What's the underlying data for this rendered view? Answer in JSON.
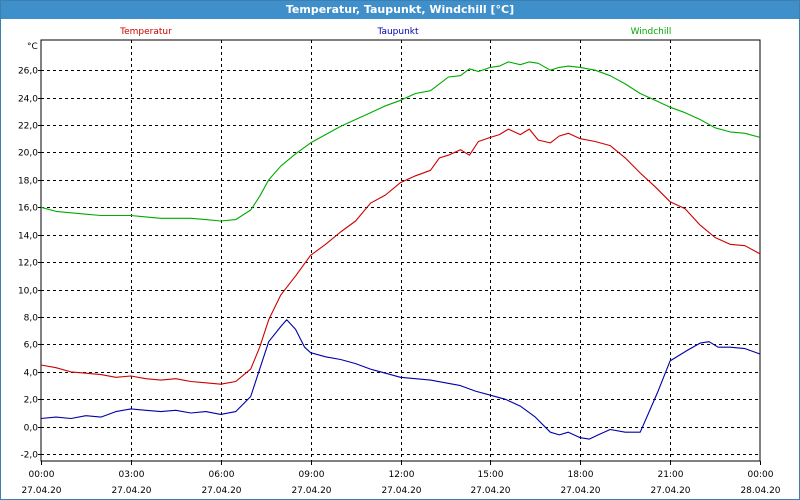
{
  "window": {
    "title": "Temperatur, Taupunkt, Windchill [°C]"
  },
  "chart_data": {
    "type": "line",
    "ylabel": "°C",
    "ylim": [
      -2.5,
      28.2
    ],
    "yticks": [
      -2,
      0,
      2,
      4,
      6,
      8,
      10,
      12,
      14,
      16,
      18,
      20,
      22,
      24,
      26
    ],
    "ytick_labels": [
      "-2,0",
      "0,0",
      "2,0",
      "4,0",
      "6,0",
      "8,0",
      "10,0",
      "12,0",
      "14,0",
      "16,0",
      "18,0",
      "20,0",
      "22,0",
      "24,0",
      "26,0"
    ],
    "xlim": [
      0,
      24
    ],
    "xticks": [
      0,
      3,
      6,
      9,
      12,
      15,
      18,
      21,
      24
    ],
    "xtick_labels": [
      [
        "00:00",
        "27.04.20"
      ],
      [
        "03:00",
        "27.04.20"
      ],
      [
        "06:00",
        "27.04.20"
      ],
      [
        "09:00",
        "27.04.20"
      ],
      [
        "12:00",
        "27.04.20"
      ],
      [
        "15:00",
        "27.04.20"
      ],
      [
        "18:00",
        "27.04.20"
      ],
      [
        "21:00",
        "27.04.20"
      ],
      [
        "00:00",
        "28.04.20"
      ]
    ],
    "grid": true,
    "legend_position": "top",
    "series": [
      {
        "name": "Temperatur",
        "color": "#cc0000",
        "points": [
          [
            0,
            4.5
          ],
          [
            0.5,
            4.3
          ],
          [
            1,
            4.0
          ],
          [
            1.5,
            3.9
          ],
          [
            2,
            3.8
          ],
          [
            2.5,
            3.6
          ],
          [
            3,
            3.7
          ],
          [
            3.5,
            3.5
          ],
          [
            4,
            3.4
          ],
          [
            4.5,
            3.5
          ],
          [
            5,
            3.3
          ],
          [
            5.5,
            3.2
          ],
          [
            6,
            3.1
          ],
          [
            6.5,
            3.3
          ],
          [
            7,
            4.2
          ],
          [
            7.3,
            5.8
          ],
          [
            7.6,
            7.8
          ],
          [
            8,
            9.6
          ],
          [
            8.5,
            11.0
          ],
          [
            9,
            12.5
          ],
          [
            9.5,
            13.3
          ],
          [
            10,
            14.2
          ],
          [
            10.5,
            15.0
          ],
          [
            11,
            16.3
          ],
          [
            11.5,
            16.9
          ],
          [
            12,
            17.8
          ],
          [
            12.5,
            18.3
          ],
          [
            13,
            18.7
          ],
          [
            13.3,
            19.6
          ],
          [
            13.6,
            19.8
          ],
          [
            14,
            20.2
          ],
          [
            14.3,
            19.8
          ],
          [
            14.6,
            20.8
          ],
          [
            15,
            21.1
          ],
          [
            15.3,
            21.3
          ],
          [
            15.6,
            21.7
          ],
          [
            16,
            21.3
          ],
          [
            16.3,
            21.7
          ],
          [
            16.6,
            20.9
          ],
          [
            17,
            20.7
          ],
          [
            17.3,
            21.2
          ],
          [
            17.6,
            21.4
          ],
          [
            18,
            21.0
          ],
          [
            18.5,
            20.8
          ],
          [
            19,
            20.5
          ],
          [
            19.5,
            19.6
          ],
          [
            20,
            18.5
          ],
          [
            20.5,
            17.5
          ],
          [
            21,
            16.4
          ],
          [
            21.5,
            15.9
          ],
          [
            22,
            14.7
          ],
          [
            22.5,
            13.8
          ],
          [
            23,
            13.3
          ],
          [
            23.5,
            13.2
          ],
          [
            24,
            12.6
          ]
        ]
      },
      {
        "name": "Taupunkt",
        "color": "#0000aa",
        "points": [
          [
            0,
            0.6
          ],
          [
            0.5,
            0.7
          ],
          [
            1,
            0.6
          ],
          [
            1.5,
            0.8
          ],
          [
            2,
            0.7
          ],
          [
            2.5,
            1.1
          ],
          [
            3,
            1.3
          ],
          [
            3.5,
            1.2
          ],
          [
            4,
            1.1
          ],
          [
            4.5,
            1.2
          ],
          [
            5,
            1.0
          ],
          [
            5.5,
            1.1
          ],
          [
            6,
            0.9
          ],
          [
            6.5,
            1.1
          ],
          [
            7,
            2.2
          ],
          [
            7.3,
            4.2
          ],
          [
            7.6,
            6.2
          ],
          [
            8,
            7.3
          ],
          [
            8.2,
            7.8
          ],
          [
            8.5,
            7.1
          ],
          [
            8.8,
            5.8
          ],
          [
            9,
            5.4
          ],
          [
            9.5,
            5.1
          ],
          [
            10,
            4.9
          ],
          [
            10.5,
            4.6
          ],
          [
            11,
            4.2
          ],
          [
            11.5,
            3.9
          ],
          [
            12,
            3.6
          ],
          [
            12.5,
            3.5
          ],
          [
            13,
            3.4
          ],
          [
            13.5,
            3.2
          ],
          [
            14,
            3.0
          ],
          [
            14.5,
            2.6
          ],
          [
            15,
            2.3
          ],
          [
            15.5,
            2.0
          ],
          [
            16,
            1.5
          ],
          [
            16.5,
            0.7
          ],
          [
            17,
            -0.4
          ],
          [
            17.3,
            -0.6
          ],
          [
            17.6,
            -0.4
          ],
          [
            18,
            -0.8
          ],
          [
            18.3,
            -0.9
          ],
          [
            18.6,
            -0.6
          ],
          [
            19,
            -0.2
          ],
          [
            19.5,
            -0.4
          ],
          [
            20,
            -0.4
          ],
          [
            20.3,
            1.1
          ],
          [
            20.6,
            2.6
          ],
          [
            21,
            4.8
          ],
          [
            21.3,
            5.2
          ],
          [
            21.6,
            5.6
          ],
          [
            22,
            6.1
          ],
          [
            22.3,
            6.2
          ],
          [
            22.6,
            5.8
          ],
          [
            23,
            5.8
          ],
          [
            23.5,
            5.7
          ],
          [
            24,
            5.3
          ]
        ]
      },
      {
        "name": "Windchill",
        "color": "#00aa00",
        "points": [
          [
            0,
            16.0
          ],
          [
            0.5,
            15.7
          ],
          [
            1,
            15.6
          ],
          [
            1.5,
            15.5
          ],
          [
            2,
            15.4
          ],
          [
            2.5,
            15.4
          ],
          [
            3,
            15.4
          ],
          [
            3.5,
            15.3
          ],
          [
            4,
            15.2
          ],
          [
            4.5,
            15.2
          ],
          [
            5,
            15.2
          ],
          [
            5.5,
            15.1
          ],
          [
            6,
            15.0
          ],
          [
            6.5,
            15.1
          ],
          [
            7,
            15.8
          ],
          [
            7.3,
            16.8
          ],
          [
            7.6,
            18.0
          ],
          [
            8,
            19.0
          ],
          [
            8.5,
            19.9
          ],
          [
            9,
            20.7
          ],
          [
            9.5,
            21.3
          ],
          [
            10,
            21.9
          ],
          [
            10.5,
            22.4
          ],
          [
            11,
            22.9
          ],
          [
            11.5,
            23.4
          ],
          [
            12,
            23.8
          ],
          [
            12.5,
            24.3
          ],
          [
            13,
            24.5
          ],
          [
            13.3,
            25.0
          ],
          [
            13.6,
            25.5
          ],
          [
            14,
            25.6
          ],
          [
            14.3,
            26.1
          ],
          [
            14.6,
            25.9
          ],
          [
            15,
            26.2
          ],
          [
            15.3,
            26.3
          ],
          [
            15.6,
            26.6
          ],
          [
            16,
            26.4
          ],
          [
            16.3,
            26.6
          ],
          [
            16.6,
            26.5
          ],
          [
            17,
            26.0
          ],
          [
            17.3,
            26.2
          ],
          [
            17.6,
            26.3
          ],
          [
            18,
            26.2
          ],
          [
            18.5,
            26.0
          ],
          [
            19,
            25.6
          ],
          [
            19.5,
            25.0
          ],
          [
            20,
            24.3
          ],
          [
            20.5,
            23.8
          ],
          [
            21,
            23.3
          ],
          [
            21.5,
            22.9
          ],
          [
            22,
            22.4
          ],
          [
            22.5,
            21.8
          ],
          [
            23,
            21.5
          ],
          [
            23.5,
            21.4
          ],
          [
            24,
            21.1
          ]
        ]
      }
    ]
  }
}
